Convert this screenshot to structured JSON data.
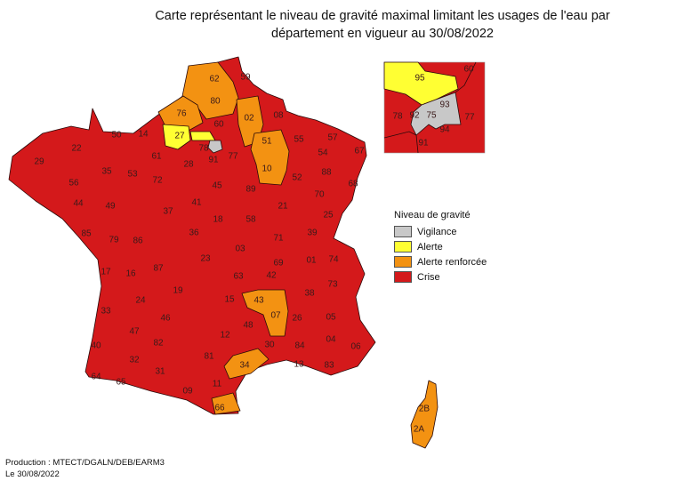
{
  "title": {
    "line1": "Carte représentant le niveau de gravité maximal limitant les usages de l'eau par",
    "line2": "département en vigueur au 30/08/2022"
  },
  "levels": {
    "vigilance": {
      "label": "Vigilance",
      "color": "#c8c8c8"
    },
    "alerte": {
      "label": "Alerte",
      "color": "#ffff33"
    },
    "alerte_renforcee": {
      "label": "Alerte renforcée",
      "color": "#f39212"
    },
    "crise": {
      "label": "Crise",
      "color": "#d4191b"
    }
  },
  "legend": {
    "title": "Niveau de gravité"
  },
  "departments": [
    {
      "code": "62",
      "level": "alerte_renforcee"
    },
    {
      "code": "59",
      "level": "crise"
    },
    {
      "code": "80",
      "level": "alerte_renforcee"
    },
    {
      "code": "76",
      "level": "alerte_renforcee"
    },
    {
      "code": "60",
      "level": "crise"
    },
    {
      "code": "02",
      "level": "alerte_renforcee"
    },
    {
      "code": "08",
      "level": "crise"
    },
    {
      "code": "27",
      "level": "alerte"
    },
    {
      "code": "78",
      "level": "crise"
    },
    {
      "code": "91",
      "level": "crise"
    },
    {
      "code": "77",
      "level": "crise"
    },
    {
      "code": "51",
      "level": "alerte_renforcee"
    },
    {
      "code": "55",
      "level": "crise"
    },
    {
      "code": "57",
      "level": "crise"
    },
    {
      "code": "67",
      "level": "crise"
    },
    {
      "code": "54",
      "level": "crise"
    },
    {
      "code": "88",
      "level": "crise"
    },
    {
      "code": "68",
      "level": "crise"
    },
    {
      "code": "10",
      "level": "alerte_renforcee"
    },
    {
      "code": "52",
      "level": "crise"
    },
    {
      "code": "70",
      "level": "crise"
    },
    {
      "code": "25",
      "level": "crise"
    },
    {
      "code": "50",
      "level": "crise"
    },
    {
      "code": "14",
      "level": "crise"
    },
    {
      "code": "61",
      "level": "crise"
    },
    {
      "code": "29",
      "level": "crise"
    },
    {
      "code": "22",
      "level": "crise"
    },
    {
      "code": "35",
      "level": "crise"
    },
    {
      "code": "53",
      "level": "crise"
    },
    {
      "code": "72",
      "level": "crise"
    },
    {
      "code": "28",
      "level": "crise"
    },
    {
      "code": "45",
      "level": "crise"
    },
    {
      "code": "89",
      "level": "crise"
    },
    {
      "code": "21",
      "level": "crise"
    },
    {
      "code": "39",
      "level": "crise"
    },
    {
      "code": "56",
      "level": "crise"
    },
    {
      "code": "44",
      "level": "crise"
    },
    {
      "code": "49",
      "level": "crise"
    },
    {
      "code": "37",
      "level": "crise"
    },
    {
      "code": "41",
      "level": "crise"
    },
    {
      "code": "18",
      "level": "crise"
    },
    {
      "code": "58",
      "level": "crise"
    },
    {
      "code": "71",
      "level": "crise"
    },
    {
      "code": "01",
      "level": "crise"
    },
    {
      "code": "74",
      "level": "crise"
    },
    {
      "code": "85",
      "level": "crise"
    },
    {
      "code": "79",
      "level": "crise"
    },
    {
      "code": "86",
      "level": "crise"
    },
    {
      "code": "36",
      "level": "crise"
    },
    {
      "code": "03",
      "level": "crise"
    },
    {
      "code": "69",
      "level": "crise"
    },
    {
      "code": "42",
      "level": "crise"
    },
    {
      "code": "73",
      "level": "crise"
    },
    {
      "code": "17",
      "level": "crise"
    },
    {
      "code": "16",
      "level": "crise"
    },
    {
      "code": "87",
      "level": "crise"
    },
    {
      "code": "23",
      "level": "crise"
    },
    {
      "code": "63",
      "level": "crise"
    },
    {
      "code": "38",
      "level": "crise"
    },
    {
      "code": "33",
      "level": "crise"
    },
    {
      "code": "24",
      "level": "crise"
    },
    {
      "code": "19",
      "level": "crise"
    },
    {
      "code": "15",
      "level": "crise"
    },
    {
      "code": "43",
      "level": "alerte_renforcee"
    },
    {
      "code": "07",
      "level": "alerte_renforcee"
    },
    {
      "code": "26",
      "level": "crise"
    },
    {
      "code": "05",
      "level": "crise"
    },
    {
      "code": "40",
      "level": "crise"
    },
    {
      "code": "47",
      "level": "crise"
    },
    {
      "code": "46",
      "level": "crise"
    },
    {
      "code": "12",
      "level": "crise"
    },
    {
      "code": "48",
      "level": "crise"
    },
    {
      "code": "84",
      "level": "crise"
    },
    {
      "code": "04",
      "level": "crise"
    },
    {
      "code": "06",
      "level": "crise"
    },
    {
      "code": "32",
      "level": "crise"
    },
    {
      "code": "82",
      "level": "crise"
    },
    {
      "code": "81",
      "level": "crise"
    },
    {
      "code": "30",
      "level": "crise"
    },
    {
      "code": "13",
      "level": "crise"
    },
    {
      "code": "83",
      "level": "crise"
    },
    {
      "code": "64",
      "level": "crise"
    },
    {
      "code": "65",
      "level": "crise"
    },
    {
      "code": "31",
      "level": "crise"
    },
    {
      "code": "09",
      "level": "crise"
    },
    {
      "code": "11",
      "level": "crise"
    },
    {
      "code": "34",
      "level": "alerte_renforcee"
    },
    {
      "code": "66",
      "level": "alerte_renforcee"
    },
    {
      "code": "2B",
      "level": "alerte_renforcee"
    },
    {
      "code": "2A",
      "level": "alerte_renforcee"
    }
  ],
  "inset_departments": [
    {
      "code": "95",
      "level": "alerte"
    },
    {
      "code": "60",
      "level": "crise"
    },
    {
      "code": "93",
      "level": "vigilance"
    },
    {
      "code": "92",
      "level": "vigilance"
    },
    {
      "code": "75",
      "level": "vigilance"
    },
    {
      "code": "78",
      "level": "crise"
    },
    {
      "code": "77",
      "level": "crise"
    },
    {
      "code": "94",
      "level": "crise"
    },
    {
      "code": "91",
      "level": "crise"
    }
  ],
  "footer": {
    "production": "Production : MTECT/DGALN/DEB/EARM3",
    "date": "Le 30/08/2022"
  }
}
